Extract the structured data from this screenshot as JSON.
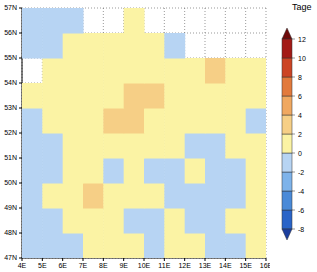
{
  "chart_data": {
    "type": "heatmap",
    "grid": true,
    "xlim": [
      4,
      16
    ],
    "ylim": [
      47,
      57
    ],
    "xticks": [
      {
        "value": 4,
        "label": "4E"
      },
      {
        "value": 5,
        "label": "5E"
      },
      {
        "value": 6,
        "label": "6E"
      },
      {
        "value": 7,
        "label": "7E"
      },
      {
        "value": 8,
        "label": "8E"
      },
      {
        "value": 9,
        "label": "9E"
      },
      {
        "value": 10,
        "label": "10E"
      },
      {
        "value": 11,
        "label": "11E"
      },
      {
        "value": 12,
        "label": "12E"
      },
      {
        "value": 13,
        "label": "13E"
      },
      {
        "value": 14,
        "label": "14E"
      },
      {
        "value": 15,
        "label": "15E"
      },
      {
        "value": 16,
        "label": "16E"
      }
    ],
    "yticks": [
      {
        "value": 47,
        "label": "47N"
      },
      {
        "value": 48,
        "label": "48N"
      },
      {
        "value": 49,
        "label": "49N"
      },
      {
        "value": 50,
        "label": "50N"
      },
      {
        "value": 51,
        "label": "51N"
      },
      {
        "value": 52,
        "label": "52N"
      },
      {
        "value": 53,
        "label": "53N"
      },
      {
        "value": 54,
        "label": "54N"
      },
      {
        "value": 55,
        "label": "55N"
      },
      {
        "value": 56,
        "label": "56N"
      },
      {
        "value": 57,
        "label": "57N"
      }
    ],
    "x": [
      4.5,
      5.5,
      6.5,
      7.5,
      8.5,
      9.5,
      10.5,
      11.5,
      12.5,
      13.5,
      14.5,
      15.5
    ],
    "y": [
      47.5,
      48.5,
      49.5,
      50.5,
      51.5,
      52.5,
      53.5,
      54.5,
      55.5,
      56.5
    ],
    "cells": [
      [
        -0.8,
        -0.6,
        -0.5,
        0.9,
        1.1,
        0.7,
        -0.7,
        0.8,
        0.6,
        -0.9,
        -0.5,
        0.8
      ],
      [
        -0.7,
        -0.5,
        0.8,
        1.2,
        0.9,
        -0.6,
        -0.8,
        0.7,
        -0.6,
        -0.8,
        0.6,
        0.9
      ],
      [
        -0.6,
        0.7,
        1.1,
        2.4,
        1.3,
        0.9,
        0.8,
        -0.7,
        -0.9,
        -0.6,
        -0.5,
        0.7
      ],
      [
        -0.9,
        -0.7,
        0.9,
        1.0,
        -0.6,
        0.8,
        -0.7,
        -0.5,
        0.9,
        -0.8,
        -0.6,
        1.0
      ],
      [
        -0.8,
        -0.6,
        1.2,
        1.4,
        1.1,
        1.3,
        0.9,
        0.8,
        -0.7,
        -0.6,
        0.9,
        1.1
      ],
      [
        -0.7,
        1.0,
        1.3,
        1.5,
        2.3,
        2.6,
        1.4,
        1.1,
        0.9,
        1.2,
        1.0,
        -0.6
      ],
      [
        0.8,
        1.1,
        1.4,
        1.2,
        1.6,
        2.5,
        2.2,
        1.3,
        1.0,
        1.1,
        0.9,
        0.8
      ],
      [
        null,
        0.9,
        1.2,
        1.1,
        1.3,
        1.4,
        1.5,
        1.2,
        1.6,
        2.7,
        1.3,
        1.0
      ],
      [
        -0.8,
        -0.6,
        0.9,
        1.1,
        1.0,
        0.8,
        0.7,
        -0.6,
        null,
        null,
        null,
        null
      ],
      [
        -0.7,
        -0.9,
        -0.6,
        null,
        null,
        0.8,
        null,
        null,
        null,
        null,
        null,
        null
      ]
    ],
    "colorbar": {
      "label": "Tage",
      "ticks": [
        -8,
        -6,
        -4,
        -2,
        0,
        2,
        4,
        6,
        8,
        10,
        12
      ],
      "colors": [
        "#1c3f9e",
        "#2a64c8",
        "#4a8ad8",
        "#7eb3ea",
        "#b7d4f3",
        "#fbf3a4",
        "#f6cf86",
        "#f0a860",
        "#e27a3c",
        "#cc4424",
        "#a31a16",
        "#6e0a0a"
      ]
    }
  }
}
